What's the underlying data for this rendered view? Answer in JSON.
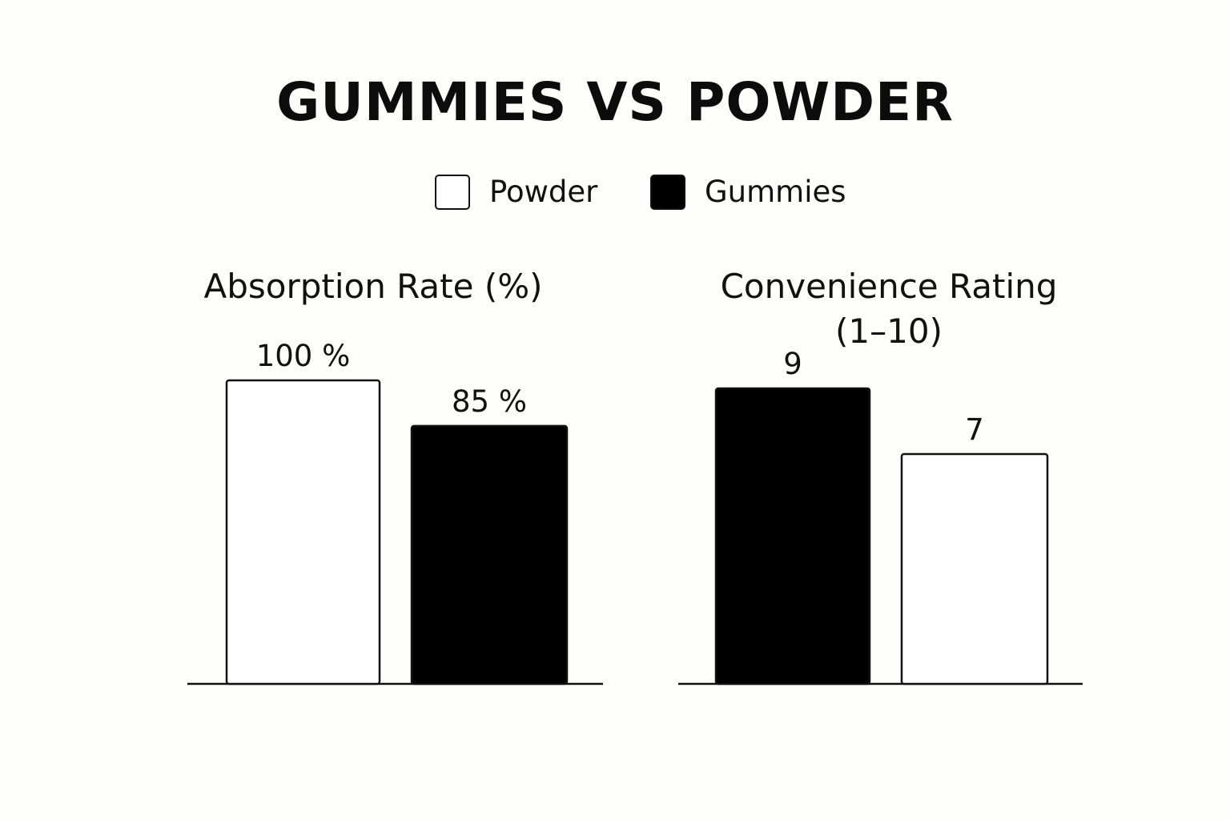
{
  "title": "GUMMIES VS POWDER",
  "legend": {
    "powder": {
      "label": "Powder",
      "color": "#ffffff"
    },
    "gummies": {
      "label": "Gummies",
      "color": "#000000"
    }
  },
  "chart_data": [
    {
      "type": "bar",
      "title": "Absorption Rate (%)",
      "categories": [
        "Powder",
        "Gummies"
      ],
      "values": [
        100,
        85
      ],
      "data_labels": [
        "100 %",
        "85 %"
      ],
      "colors": [
        "#ffffff",
        "#000000"
      ],
      "ylim": [
        0,
        100
      ],
      "grid": false,
      "legend_position": "top-center"
    },
    {
      "type": "bar",
      "title": "Convenience Rating (1–10)",
      "categories": [
        "Gummies",
        "Powder"
      ],
      "values": [
        9,
        7
      ],
      "data_labels": [
        "9",
        "7"
      ],
      "colors": [
        "#000000",
        "#ffffff"
      ],
      "ylim": [
        0,
        10
      ],
      "grid": false,
      "legend_position": "top-center"
    }
  ]
}
